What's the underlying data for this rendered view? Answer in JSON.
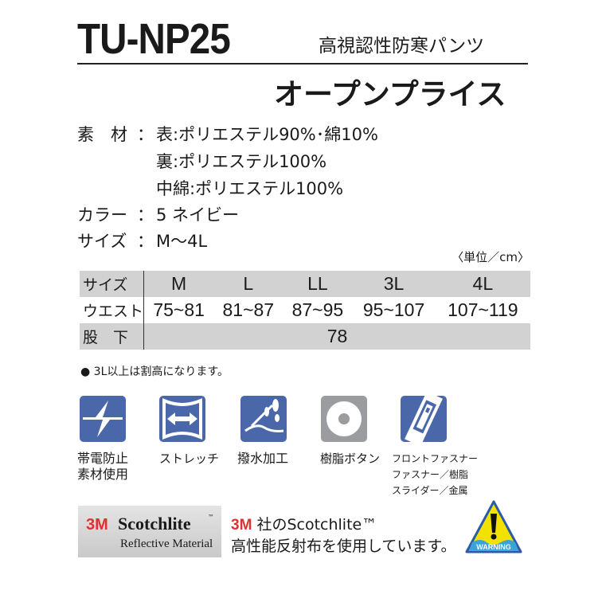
{
  "header": {
    "model": "TU-NP25",
    "subtitle": "高視認性防寒パンツ",
    "price": "オープンプライス"
  },
  "specs": [
    {
      "label": "素　材",
      "value": "表:ポリエステル90%･綿10%"
    },
    {
      "label": "",
      "value": "裏:ポリエステル100%"
    },
    {
      "label": "",
      "value": "中綿:ポリエステル100%"
    },
    {
      "label": "カラー",
      "value": "5 ネイビー"
    },
    {
      "label": "サイズ",
      "value": "M～4L"
    }
  ],
  "colon": "：",
  "size_table": {
    "unit": "〈単位／cm〉",
    "header": {
      "label": "サイズ",
      "cols": [
        "M",
        "L",
        "LL",
        "3L",
        "4L"
      ]
    },
    "waist": {
      "label": "ウエスト",
      "values": [
        "75~81",
        "81~87",
        "87~95",
        "95~107",
        "107~119"
      ]
    },
    "inseam": {
      "label": "股　下",
      "value": "78"
    }
  },
  "note": "● 3L以上は割高になります。",
  "features": [
    {
      "icon": "antistatic-icon",
      "label": "帯電防止\n素材使用",
      "color": "#4a68a9"
    },
    {
      "icon": "stretch-icon",
      "label": "ストレッチ",
      "color": "#4a68a9"
    },
    {
      "icon": "water-repellent-icon",
      "label": "撥水加工",
      "color": "#4a68a9"
    },
    {
      "icon": "resin-button-icon",
      "label": "樹脂ボタン",
      "color": "#9a9ca0"
    },
    {
      "icon": "zipper-icon",
      "label": "フロントファスナー\nファスナー／樹脂\nスライダー／金属",
      "color": "#4a68a9"
    }
  ],
  "scotchlite": {
    "logo_3m": "3M",
    "logo_name": "Scotchlite",
    "logo_tm": "™",
    "logo_sub": "Reflective Material",
    "line1_brand": "3M",
    "line1": "社のScotchlite™",
    "line2": "高性能反射布を使用しています。",
    "warning": "WARNING"
  }
}
